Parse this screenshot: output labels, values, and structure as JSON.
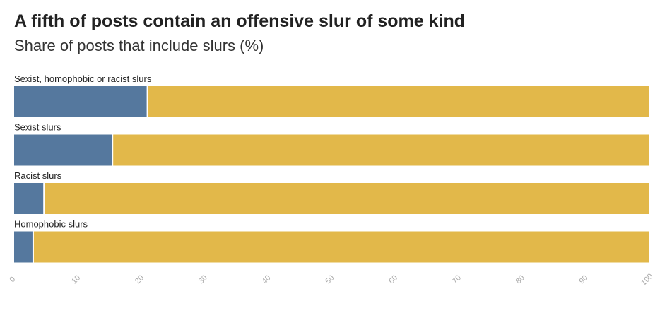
{
  "title": "A fifth of posts contain an offensive slur of some kind",
  "subtitle": "Share of posts that include slurs (%)",
  "chart_data": {
    "type": "bar",
    "orientation": "horizontal",
    "stacked": true,
    "categories": [
      "Sexist, homophobic or racist slurs",
      "Sexist slurs",
      "Racist slurs",
      "Homophobic slurs"
    ],
    "values": [
      21,
      15.5,
      4.7,
      3
    ],
    "xlim": [
      0,
      100
    ],
    "xticks": [
      "0",
      "10",
      "20",
      "30",
      "40",
      "50",
      "60",
      "70",
      "80",
      "90",
      "100"
    ],
    "grid": false,
    "legend": "none",
    "colors": {
      "value": "#55789e",
      "remainder": "#e2b84a"
    }
  }
}
